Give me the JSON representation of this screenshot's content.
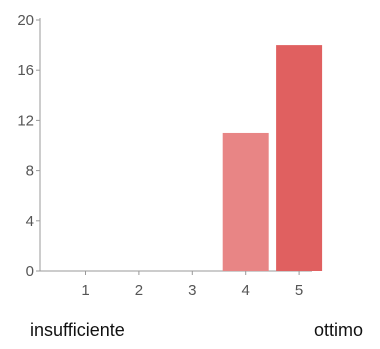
{
  "chart_data": {
    "type": "bar",
    "categories": [
      "1",
      "2",
      "3",
      "4",
      "5"
    ],
    "values": [
      0,
      0,
      0,
      11,
      18
    ],
    "title": "",
    "xlabel": "",
    "ylabel": "",
    "ylim": [
      0,
      20
    ],
    "yticks": [
      "0",
      "4",
      "8",
      "12",
      "16",
      "20"
    ],
    "grid": false,
    "legend": "none"
  },
  "scale_labels": {
    "low": "insufficiente",
    "high": "ottimo"
  },
  "colors": {
    "bar_4": "#e88585",
    "bar_5": "#e06060",
    "axis": "#999999",
    "tick_text": "#555555"
  }
}
